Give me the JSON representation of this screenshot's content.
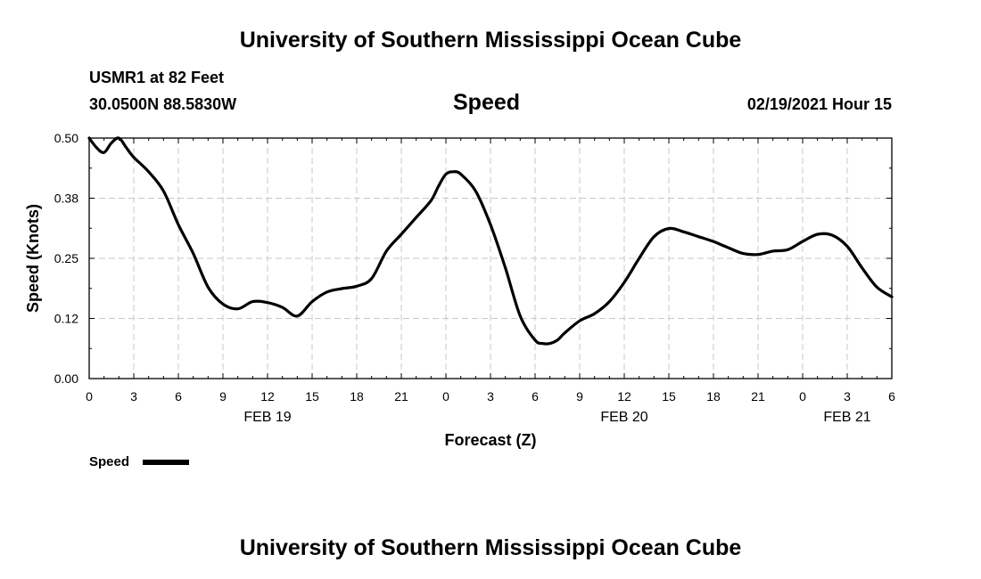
{
  "header": {
    "top_title": "University of Southern Mississippi Ocean Cube",
    "station": "USMR1 at 82 Feet",
    "coords": "30.0500N 88.5830W",
    "datetime": "02/19/2021 Hour 15",
    "bottom_title": "University of Southern Mississippi Ocean Cube"
  },
  "legend": {
    "label": "Speed"
  },
  "chart_data": {
    "type": "line",
    "title": "Speed",
    "xlabel": "Forecast (Z)",
    "ylabel": "Speed (Knots)",
    "ylim": [
      0.0,
      0.5
    ],
    "xlim": [
      0,
      54
    ],
    "x_unit": "hours from 02/19/2021 00Z",
    "y_ticks": [
      "0.00",
      "0.12",
      "0.25",
      "0.38",
      "0.50"
    ],
    "x_tick_labels": [
      "0",
      "3",
      "6",
      "9",
      "12",
      "15",
      "18",
      "21",
      "0",
      "3",
      "6",
      "9",
      "12",
      "15",
      "18",
      "21",
      "0",
      "3",
      "6"
    ],
    "date_labels": [
      {
        "label": "FEB 19",
        "at_hour": 12
      },
      {
        "label": "FEB 20",
        "at_hour": 36
      },
      {
        "label": "FEB 21",
        "at_hour": 51
      }
    ],
    "grid": true,
    "legend_position": "bottom-left",
    "line_color": "#000000",
    "series": [
      {
        "name": "Speed",
        "x": [
          0,
          0.5,
          1,
          1.5,
          2,
          2.5,
          3,
          4,
          5,
          6,
          7,
          8,
          9,
          10,
          11,
          12,
          13,
          14,
          15,
          16,
          17,
          18,
          19,
          20,
          21,
          22,
          23,
          23.5,
          24,
          24.5,
          25,
          26,
          27,
          28,
          29,
          30,
          30.5,
          31,
          31.5,
          32,
          33,
          34,
          35,
          36,
          37,
          38,
          39,
          40,
          41,
          42,
          43,
          44,
          45,
          46,
          47,
          48,
          49,
          50,
          51,
          52,
          53,
          54
        ],
        "y": [
          0.5,
          0.48,
          0.47,
          0.49,
          0.5,
          0.48,
          0.46,
          0.43,
          0.39,
          0.32,
          0.26,
          0.19,
          0.155,
          0.145,
          0.16,
          0.158,
          0.148,
          0.13,
          0.16,
          0.18,
          0.187,
          0.192,
          0.208,
          0.265,
          0.3,
          0.335,
          0.37,
          0.4,
          0.425,
          0.43,
          0.425,
          0.39,
          0.32,
          0.23,
          0.13,
          0.08,
          0.073,
          0.073,
          0.08,
          0.095,
          0.12,
          0.135,
          0.16,
          0.2,
          0.25,
          0.295,
          0.312,
          0.305,
          0.295,
          0.285,
          0.272,
          0.26,
          0.258,
          0.265,
          0.268,
          0.285,
          0.3,
          0.298,
          0.275,
          0.23,
          0.19,
          0.17
        ]
      }
    ]
  }
}
